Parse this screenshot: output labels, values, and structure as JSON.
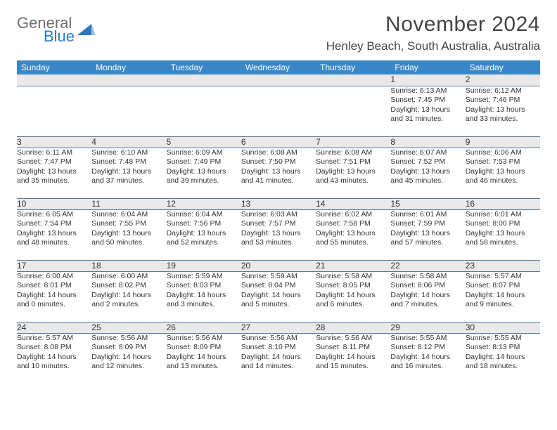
{
  "logo": {
    "top": "General",
    "bottom": "Blue"
  },
  "title": "November 2024",
  "location": "Henley Beach, South Australia, Australia",
  "colors": {
    "header_bg": "#3a87c8",
    "header_text": "#ffffff",
    "daynum_bg": "#e9e9e9",
    "row_border": "#5a7a95",
    "logo_gray": "#6f6f6f",
    "logo_blue": "#2c78bd"
  },
  "weekdays": [
    "Sunday",
    "Monday",
    "Tuesday",
    "Wednesday",
    "Thursday",
    "Friday",
    "Saturday"
  ],
  "weeks": [
    [
      null,
      null,
      null,
      null,
      null,
      {
        "n": "1",
        "sr": "Sunrise: 6:13 AM",
        "ss": "Sunset: 7:45 PM",
        "dl1": "Daylight: 13 hours",
        "dl2": "and 31 minutes."
      },
      {
        "n": "2",
        "sr": "Sunrise: 6:12 AM",
        "ss": "Sunset: 7:46 PM",
        "dl1": "Daylight: 13 hours",
        "dl2": "and 33 minutes."
      }
    ],
    [
      {
        "n": "3",
        "sr": "Sunrise: 6:11 AM",
        "ss": "Sunset: 7:47 PM",
        "dl1": "Daylight: 13 hours",
        "dl2": "and 35 minutes."
      },
      {
        "n": "4",
        "sr": "Sunrise: 6:10 AM",
        "ss": "Sunset: 7:48 PM",
        "dl1": "Daylight: 13 hours",
        "dl2": "and 37 minutes."
      },
      {
        "n": "5",
        "sr": "Sunrise: 6:09 AM",
        "ss": "Sunset: 7:49 PM",
        "dl1": "Daylight: 13 hours",
        "dl2": "and 39 minutes."
      },
      {
        "n": "6",
        "sr": "Sunrise: 6:08 AM",
        "ss": "Sunset: 7:50 PM",
        "dl1": "Daylight: 13 hours",
        "dl2": "and 41 minutes."
      },
      {
        "n": "7",
        "sr": "Sunrise: 6:08 AM",
        "ss": "Sunset: 7:51 PM",
        "dl1": "Daylight: 13 hours",
        "dl2": "and 43 minutes."
      },
      {
        "n": "8",
        "sr": "Sunrise: 6:07 AM",
        "ss": "Sunset: 7:52 PM",
        "dl1": "Daylight: 13 hours",
        "dl2": "and 45 minutes."
      },
      {
        "n": "9",
        "sr": "Sunrise: 6:06 AM",
        "ss": "Sunset: 7:53 PM",
        "dl1": "Daylight: 13 hours",
        "dl2": "and 46 minutes."
      }
    ],
    [
      {
        "n": "10",
        "sr": "Sunrise: 6:05 AM",
        "ss": "Sunset: 7:54 PM",
        "dl1": "Daylight: 13 hours",
        "dl2": "and 48 minutes."
      },
      {
        "n": "11",
        "sr": "Sunrise: 6:04 AM",
        "ss": "Sunset: 7:55 PM",
        "dl1": "Daylight: 13 hours",
        "dl2": "and 50 minutes."
      },
      {
        "n": "12",
        "sr": "Sunrise: 6:04 AM",
        "ss": "Sunset: 7:56 PM",
        "dl1": "Daylight: 13 hours",
        "dl2": "and 52 minutes."
      },
      {
        "n": "13",
        "sr": "Sunrise: 6:03 AM",
        "ss": "Sunset: 7:57 PM",
        "dl1": "Daylight: 13 hours",
        "dl2": "and 53 minutes."
      },
      {
        "n": "14",
        "sr": "Sunrise: 6:02 AM",
        "ss": "Sunset: 7:58 PM",
        "dl1": "Daylight: 13 hours",
        "dl2": "and 55 minutes."
      },
      {
        "n": "15",
        "sr": "Sunrise: 6:01 AM",
        "ss": "Sunset: 7:59 PM",
        "dl1": "Daylight: 13 hours",
        "dl2": "and 57 minutes."
      },
      {
        "n": "16",
        "sr": "Sunrise: 6:01 AM",
        "ss": "Sunset: 8:00 PM",
        "dl1": "Daylight: 13 hours",
        "dl2": "and 58 minutes."
      }
    ],
    [
      {
        "n": "17",
        "sr": "Sunrise: 6:00 AM",
        "ss": "Sunset: 8:01 PM",
        "dl1": "Daylight: 14 hours",
        "dl2": "and 0 minutes."
      },
      {
        "n": "18",
        "sr": "Sunrise: 6:00 AM",
        "ss": "Sunset: 8:02 PM",
        "dl1": "Daylight: 14 hours",
        "dl2": "and 2 minutes."
      },
      {
        "n": "19",
        "sr": "Sunrise: 5:59 AM",
        "ss": "Sunset: 8:03 PM",
        "dl1": "Daylight: 14 hours",
        "dl2": "and 3 minutes."
      },
      {
        "n": "20",
        "sr": "Sunrise: 5:59 AM",
        "ss": "Sunset: 8:04 PM",
        "dl1": "Daylight: 14 hours",
        "dl2": "and 5 minutes."
      },
      {
        "n": "21",
        "sr": "Sunrise: 5:58 AM",
        "ss": "Sunset: 8:05 PM",
        "dl1": "Daylight: 14 hours",
        "dl2": "and 6 minutes."
      },
      {
        "n": "22",
        "sr": "Sunrise: 5:58 AM",
        "ss": "Sunset: 8:06 PM",
        "dl1": "Daylight: 14 hours",
        "dl2": "and 7 minutes."
      },
      {
        "n": "23",
        "sr": "Sunrise: 5:57 AM",
        "ss": "Sunset: 8:07 PM",
        "dl1": "Daylight: 14 hours",
        "dl2": "and 9 minutes."
      }
    ],
    [
      {
        "n": "24",
        "sr": "Sunrise: 5:57 AM",
        "ss": "Sunset: 8:08 PM",
        "dl1": "Daylight: 14 hours",
        "dl2": "and 10 minutes."
      },
      {
        "n": "25",
        "sr": "Sunrise: 5:56 AM",
        "ss": "Sunset: 8:09 PM",
        "dl1": "Daylight: 14 hours",
        "dl2": "and 12 minutes."
      },
      {
        "n": "26",
        "sr": "Sunrise: 5:56 AM",
        "ss": "Sunset: 8:09 PM",
        "dl1": "Daylight: 14 hours",
        "dl2": "and 13 minutes."
      },
      {
        "n": "27",
        "sr": "Sunrise: 5:56 AM",
        "ss": "Sunset: 8:10 PM",
        "dl1": "Daylight: 14 hours",
        "dl2": "and 14 minutes."
      },
      {
        "n": "28",
        "sr": "Sunrise: 5:56 AM",
        "ss": "Sunset: 8:11 PM",
        "dl1": "Daylight: 14 hours",
        "dl2": "and 15 minutes."
      },
      {
        "n": "29",
        "sr": "Sunrise: 5:55 AM",
        "ss": "Sunset: 8:12 PM",
        "dl1": "Daylight: 14 hours",
        "dl2": "and 16 minutes."
      },
      {
        "n": "30",
        "sr": "Sunrise: 5:55 AM",
        "ss": "Sunset: 8:13 PM",
        "dl1": "Daylight: 14 hours",
        "dl2": "and 18 minutes."
      }
    ]
  ]
}
